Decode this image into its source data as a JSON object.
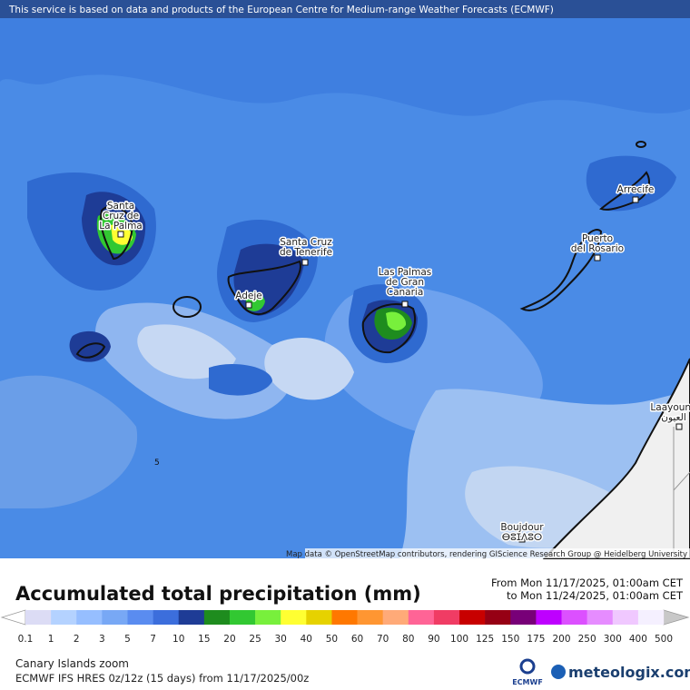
{
  "banner": "This service is based on data and products of the European Centre for Medium-range Weather Forecasts (ECMWF)",
  "map": {
    "places": [
      {
        "lines": [
          "Santa",
          "Cruz de",
          "La Palma"
        ]
      },
      {
        "lines": [
          "Santa Cruz",
          "de Tenerife"
        ]
      },
      {
        "lines": [
          "Adeje"
        ]
      },
      {
        "lines": [
          "Las Palmas",
          "de Gran",
          "Canaria"
        ]
      },
      {
        "lines": [
          "Puerto",
          "del Rosario"
        ]
      },
      {
        "lines": [
          "Arrecife"
        ]
      },
      {
        "lines": [
          "Laayoune",
          "العيون"
        ]
      },
      {
        "lines": [
          "Boujdour",
          "ⴱⵓⵊⴷⵓⵔ"
        ]
      }
    ],
    "contour_label": "5",
    "attribution": "Map data © OpenStreetMap contributors, rendering GIScience Research Group @ Heidelberg University"
  },
  "legend": {
    "title": "Accumulated total precipitation (mm)",
    "from": "From Mon 11/17/2025, 01:00am CET",
    "to": "to Mon 11/24/2025, 01:00am CET",
    "labels": [
      "0.1",
      "1",
      "2",
      "3",
      "5",
      "7",
      "10",
      "15",
      "20",
      "25",
      "30",
      "40",
      "50",
      "60",
      "70",
      "80",
      "90",
      "100",
      "125",
      "150",
      "175",
      "200",
      "250",
      "300",
      "400",
      "500"
    ],
    "colors": [
      "#dcdcf5",
      "#b4d2ff",
      "#96beff",
      "#78a8f5",
      "#5a8cf0",
      "#3c6edc",
      "#1e3c96",
      "#1e8c1e",
      "#32c832",
      "#78f03c",
      "#ffff32",
      "#e6d200",
      "#ff7800",
      "#ff9632",
      "#ffaa78",
      "#ff6496",
      "#f03c64",
      "#c80000",
      "#960014",
      "#780078",
      "#be00ff",
      "#dc50ff",
      "#e68cff",
      "#f0c8ff",
      "#f5f0ff"
    ],
    "under_color": "#ffffff",
    "over_color": "#c8c8c8"
  },
  "footer": {
    "region": "Canary Islands zoom",
    "model": "ECMWF IFS HRES 0z/12z (15 days) from 11/17/2025/00z",
    "ecmwf": "ECMWF",
    "brand": "meteologix.com"
  }
}
